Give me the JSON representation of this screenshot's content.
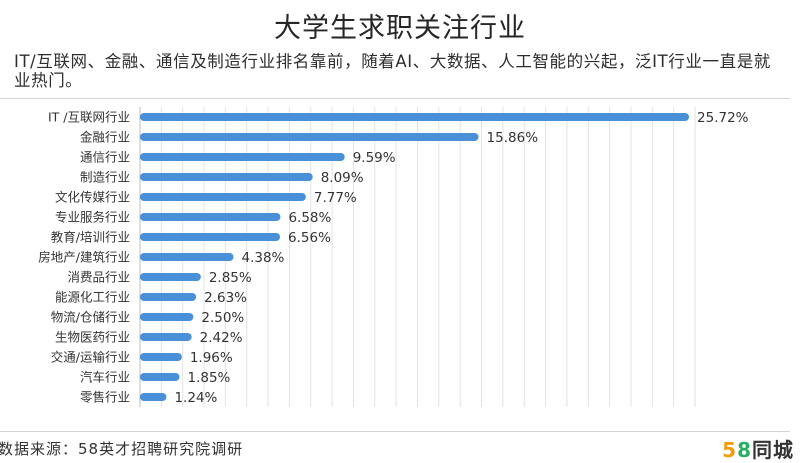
{
  "header": {
    "title": "大学生求职关注行业",
    "subtitle": "IT/互联网、金融、通信及制造行业排名靠前，随着AI、大数据、人工智能的兴起，泛IT行业一直是就业热门。"
  },
  "footer": {
    "source": "数据来源：58英才招聘研究院调研",
    "logo_number_5": "5",
    "logo_number_8": "8",
    "logo_text": "同城"
  },
  "colors": {
    "bar": "#4a90d9",
    "grid": "#e2e2e2",
    "logo_5": "#f39c12",
    "logo_8": "#27ae60"
  },
  "chart_data": {
    "type": "bar",
    "orientation": "horizontal",
    "categories": [
      "IT /互联网行业",
      "金融行业",
      "通信行业",
      "制造行业",
      "文化传媒行业",
      "专业服务行业",
      "教育/培训行业",
      "房地产/建筑行业",
      "消费品行业",
      "能源化工行业",
      "物流/仓储行业",
      "生物医药行业",
      "交通/运输行业",
      "汽车行业",
      "零售行业"
    ],
    "values": [
      25.72,
      15.86,
      9.59,
      8.09,
      7.77,
      6.58,
      6.56,
      4.38,
      2.85,
      2.63,
      2.5,
      2.42,
      1.96,
      1.85,
      1.24
    ],
    "value_labels": [
      "25.72%",
      "15.86%",
      "9.59%",
      "8.09%",
      "7.77%",
      "6.58%",
      "6.56%",
      "4.38%",
      "2.85%",
      "2.63%",
      "2.50%",
      "2.42%",
      "1.96%",
      "1.85%",
      "1.24%"
    ],
    "xlim": [
      0,
      26
    ],
    "grid": true
  }
}
